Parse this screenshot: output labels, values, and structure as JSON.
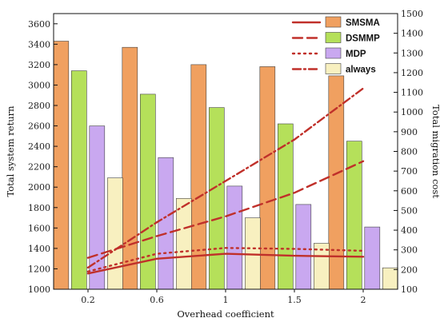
{
  "chart_data": {
    "type": "bar",
    "xlabel": "Overhead coefficient",
    "ylabel": "Total system return",
    "y2label": "Total migration cost",
    "categories": [
      "0.2",
      "0.6",
      "1",
      "1.5",
      "2"
    ],
    "ylim": [
      1000,
      3700
    ],
    "yticks": [
      1000,
      1200,
      1400,
      1600,
      1800,
      2000,
      2200,
      2400,
      2600,
      2800,
      3000,
      3200,
      3400,
      3600
    ],
    "y2lim": [
      100,
      1500
    ],
    "y2ticks": [
      100,
      200,
      300,
      400,
      500,
      600,
      700,
      800,
      900,
      1000,
      1100,
      1200,
      1300,
      1400,
      1500
    ],
    "grid": false,
    "legend_position": "top-right",
    "bar_series": [
      {
        "name": "SMSMA",
        "color": "#f0a060",
        "values": [
          3430,
          3370,
          3200,
          3180,
          3090
        ]
      },
      {
        "name": "DSMMP",
        "color": "#b5e05a",
        "values": [
          3140,
          2910,
          2780,
          2620,
          2450
        ]
      },
      {
        "name": "MDP",
        "color": "#c9a8f0",
        "values": [
          2600,
          2290,
          2010,
          1830,
          1610
        ]
      },
      {
        "name": "always",
        "color": "#f8f0c0",
        "values": [
          2090,
          1890,
          1700,
          1450,
          1210
        ]
      }
    ],
    "line_series": [
      {
        "name": "SMSMA",
        "style": "solid",
        "color": "#c0302a",
        "axis": "right",
        "values": [
          180,
          255,
          280,
          270,
          265
        ]
      },
      {
        "name": "DSMMP",
        "style": "dashed",
        "color": "#c0302a",
        "axis": "right",
        "values": [
          260,
          370,
          470,
          590,
          750
        ]
      },
      {
        "name": "MDP",
        "style": "dotted",
        "color": "#c0302a",
        "axis": "right",
        "values": [
          190,
          280,
          310,
          305,
          295
        ]
      },
      {
        "name": "always",
        "style": "dashdot",
        "color": "#c0302a",
        "axis": "right",
        "values": [
          210,
          440,
          650,
          860,
          1120
        ]
      }
    ]
  }
}
